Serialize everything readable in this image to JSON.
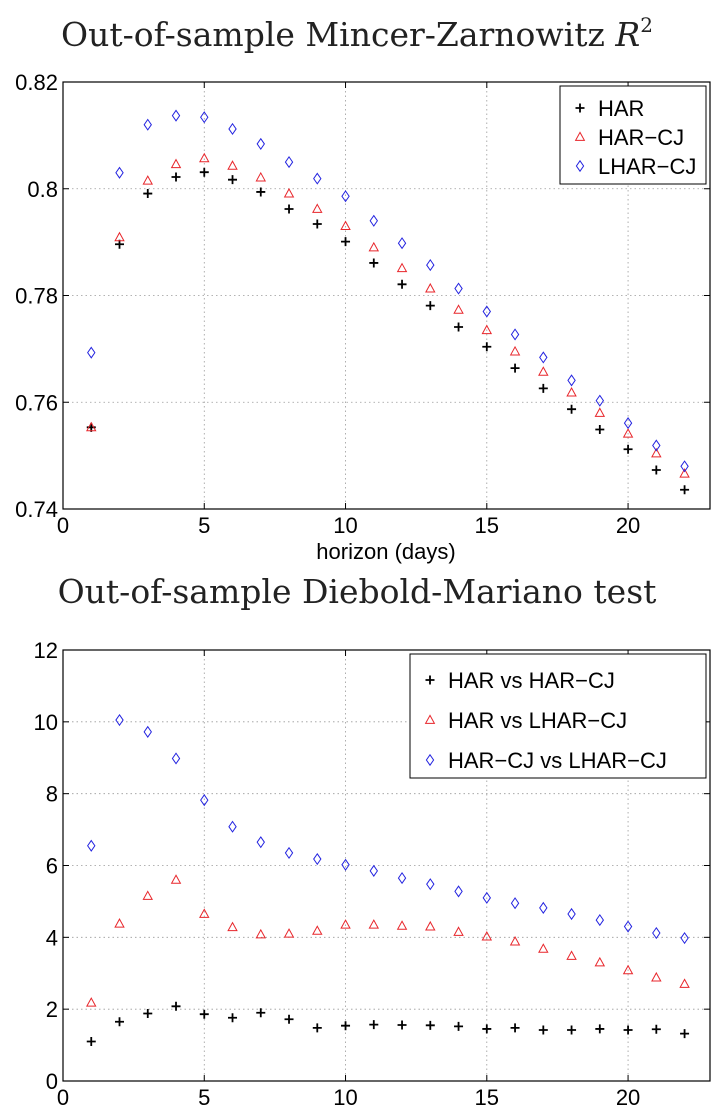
{
  "chart_data": [
    {
      "type": "scatter",
      "title_main": "Out-of-sample Mincer-Zarnowitz ",
      "title_math": "R",
      "title_sup": "2",
      "xlabel": "horizon (days)",
      "ylabel": "",
      "xlim": [
        0,
        22.9
      ],
      "ylim": [
        0.74,
        0.82
      ],
      "xticks": [
        0,
        5,
        10,
        15,
        20
      ],
      "yticks": [
        0.74,
        0.76,
        0.78,
        0.8,
        0.82
      ],
      "xtick_labels": [
        "0",
        "5",
        "10",
        "15",
        "20"
      ],
      "ytick_labels": [
        "0.74",
        "0.76",
        "0.78",
        "0.8",
        "0.82"
      ],
      "grid": true,
      "legend_position": "top-right",
      "x": [
        1,
        2,
        3,
        4,
        5,
        6,
        7,
        8,
        9,
        10,
        11,
        12,
        13,
        14,
        15,
        16,
        17,
        18,
        19,
        20,
        21,
        22
      ],
      "series": [
        {
          "name": "HAR",
          "marker": "plus",
          "color": "#000000",
          "values": [
            0.7553,
            0.7896,
            0.7991,
            0.8022,
            0.8031,
            0.8017,
            0.7994,
            0.7962,
            0.7934,
            0.7901,
            0.7861,
            0.7821,
            0.7781,
            0.7741,
            0.7704,
            0.7664,
            0.7626,
            0.7587,
            0.7549,
            0.7512,
            0.7473,
            0.7436
          ]
        },
        {
          "name": "HAR−CJ",
          "marker": "triangle",
          "color": "#e8262b",
          "values": [
            0.7553,
            0.7909,
            0.8015,
            0.8046,
            0.8057,
            0.8043,
            0.8021,
            0.7991,
            0.7962,
            0.793,
            0.789,
            0.7851,
            0.7813,
            0.7773,
            0.7735,
            0.7695,
            0.7657,
            0.7618,
            0.758,
            0.7541,
            0.7504,
            0.7466
          ]
        },
        {
          "name": "LHAR−CJ",
          "marker": "diamond",
          "color": "#2424e0",
          "values": [
            0.7693,
            0.803,
            0.812,
            0.8137,
            0.8134,
            0.8112,
            0.8084,
            0.805,
            0.8019,
            0.7986,
            0.794,
            0.7898,
            0.7857,
            0.7813,
            0.777,
            0.7727,
            0.7684,
            0.7641,
            0.7603,
            0.7561,
            0.7519,
            0.748
          ]
        }
      ]
    },
    {
      "type": "scatter",
      "title_main": "Out-of-sample Diebold-Mariano test",
      "xlabel": "",
      "ylabel": "",
      "xlim": [
        0,
        22.9
      ],
      "ylim": [
        0,
        12
      ],
      "xticks": [
        0,
        5,
        10,
        15,
        20
      ],
      "yticks": [
        0,
        2,
        4,
        6,
        8,
        10,
        12
      ],
      "xtick_labels": [
        "0",
        "5",
        "10",
        "15",
        "20"
      ],
      "ytick_labels": [
        "0",
        "2",
        "4",
        "6",
        "8",
        "10",
        "12"
      ],
      "grid": true,
      "legend_position": "top-right",
      "x": [
        1,
        2,
        3,
        4,
        5,
        6,
        7,
        8,
        9,
        10,
        11,
        12,
        13,
        14,
        15,
        16,
        17,
        18,
        19,
        20,
        21,
        22
      ],
      "series": [
        {
          "name": "HAR vs HAR−CJ",
          "marker": "plus",
          "color": "#000000",
          "values": [
            1.1,
            1.65,
            1.88,
            2.08,
            1.86,
            1.76,
            1.9,
            1.72,
            1.48,
            1.54,
            1.57,
            1.56,
            1.55,
            1.52,
            1.45,
            1.48,
            1.42,
            1.42,
            1.45,
            1.42,
            1.44,
            1.32
          ]
        },
        {
          "name": "HAR vs LHAR−CJ",
          "marker": "triangle",
          "color": "#e8262b",
          "values": [
            2.18,
            4.38,
            5.15,
            5.6,
            4.65,
            4.28,
            4.08,
            4.1,
            4.18,
            4.35,
            4.35,
            4.32,
            4.3,
            4.15,
            4.02,
            3.88,
            3.68,
            3.48,
            3.3,
            3.08,
            2.88,
            2.7
          ]
        },
        {
          "name": "HAR−CJ vs LHAR−CJ",
          "marker": "diamond",
          "color": "#2424e0",
          "values": [
            6.55,
            10.05,
            9.72,
            8.98,
            7.82,
            7.08,
            6.65,
            6.35,
            6.18,
            6.02,
            5.85,
            5.65,
            5.48,
            5.28,
            5.1,
            4.95,
            4.82,
            4.65,
            4.48,
            4.3,
            4.12,
            3.98
          ]
        }
      ]
    }
  ]
}
